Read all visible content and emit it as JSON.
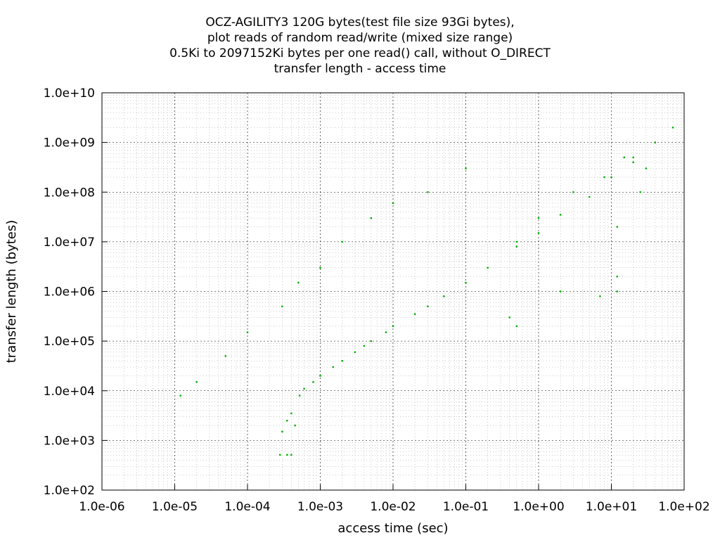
{
  "chart_data": {
    "type": "scatter",
    "title_lines": [
      "OCZ-AGILITY3 120G bytes(test file size 93Gi bytes),",
      "plot reads of random read/write (mixed size range)",
      "0.5Ki to 2097152Ki bytes per one read() call, without O_DIRECT",
      "transfer length - access time"
    ],
    "xlabel": "access time (sec)",
    "ylabel": "transfer length (bytes)",
    "x_scale": "log",
    "y_scale": "log",
    "xlim": [
      1e-06,
      100
    ],
    "ylim": [
      100,
      10000000000.0
    ],
    "x_ticks": [
      "1.0e-06",
      "1.0e-05",
      "1.0e-04",
      "1.0e-03",
      "1.0e-02",
      "1.0e-01",
      "1.0e+00",
      "1.0e+01",
      "1.0e+02"
    ],
    "y_ticks": [
      "1.0e+02",
      "1.0e+03",
      "1.0e+04",
      "1.0e+05",
      "1.0e+06",
      "1.0e+07",
      "1.0e+08",
      "1.0e+09",
      "1.0e+10"
    ],
    "grid": true,
    "point_color": "#00b000",
    "series": [
      {
        "values": [
          [
            0.00028,
            512
          ],
          [
            0.00035,
            512
          ],
          [
            0.0004,
            512
          ],
          [
            0.0003,
            1500
          ],
          [
            0.00035,
            2500
          ],
          [
            0.0004,
            3500
          ],
          [
            0.00045,
            2000
          ],
          [
            0.00052,
            8000
          ],
          [
            0.0006,
            11000
          ],
          [
            0.0008,
            15000
          ],
          [
            0.001,
            20000
          ],
          [
            0.0015,
            30000
          ],
          [
            0.002,
            40000
          ],
          [
            0.003,
            60000
          ],
          [
            0.004,
            80000
          ],
          [
            0.005,
            100000
          ],
          [
            0.008,
            150000
          ],
          [
            0.01,
            200000
          ],
          [
            0.02,
            350000
          ],
          [
            0.03,
            500000
          ],
          [
            0.05,
            800000
          ],
          [
            0.1,
            1500000
          ],
          [
            0.2,
            3000000
          ],
          [
            0.5,
            8000000
          ],
          [
            1,
            15000000
          ],
          [
            2,
            35000000
          ],
          [
            5,
            80000000
          ],
          [
            10,
            200000000
          ],
          [
            20,
            500000000
          ],
          [
            40,
            1000000000
          ],
          [
            70,
            2000000000
          ],
          [
            1.2e-05,
            8000
          ],
          [
            2e-05,
            15000
          ],
          [
            5e-05,
            50000
          ],
          [
            0.0001,
            150000
          ],
          [
            0.0003,
            500000
          ],
          [
            0.0005,
            1500000
          ],
          [
            0.001,
            3000000
          ],
          [
            0.002,
            10000000
          ],
          [
            0.005,
            30000000
          ],
          [
            0.01,
            60000000
          ],
          [
            0.03,
            100000000
          ],
          [
            0.1,
            300000000
          ],
          [
            0.5,
            10000000
          ],
          [
            1,
            30000000
          ],
          [
            3,
            100000000
          ],
          [
            8,
            200000000
          ],
          [
            12,
            20000000
          ],
          [
            12,
            2000000
          ],
          [
            12,
            1000000
          ],
          [
            7,
            800000
          ],
          [
            20,
            400000000
          ],
          [
            30,
            300000000
          ],
          [
            25,
            100000000
          ],
          [
            15,
            500000000
          ],
          [
            2,
            1000000
          ],
          [
            0.5,
            200000
          ],
          [
            0.4,
            300000
          ]
        ]
      }
    ]
  }
}
